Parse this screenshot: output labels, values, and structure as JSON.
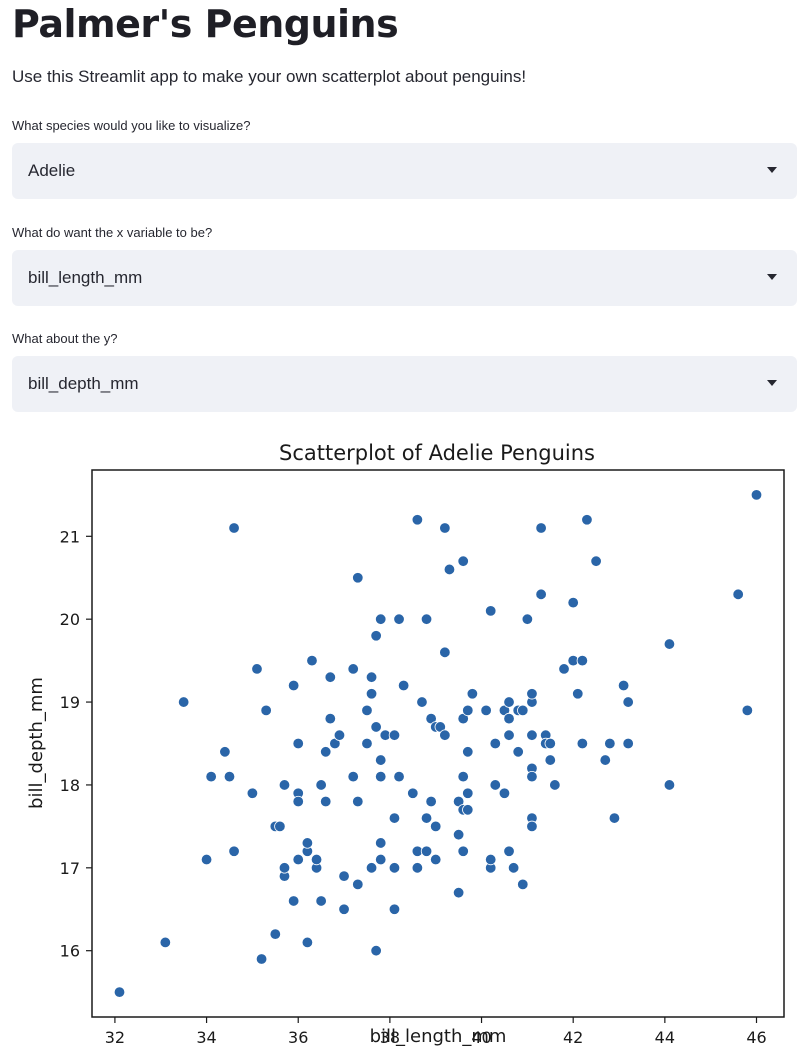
{
  "page": {
    "title": "Palmer's Penguins",
    "subtitle": "Use this Streamlit app to make your own scatterplot about penguins!"
  },
  "controls": [
    {
      "label": "What species would you like to visualize?",
      "value": "Adelie"
    },
    {
      "label": "What do want the x variable to be?",
      "value": "bill_length_mm"
    },
    {
      "label": "What about the y?",
      "value": "bill_depth_mm"
    }
  ],
  "icons": {
    "dropdown": "chevron-down-icon"
  },
  "colors": {
    "point": "#2a65a8",
    "select_bg": "#eff1f6"
  },
  "chart_data": {
    "type": "scatter",
    "title": "Scatterplot of Adelie Penguins",
    "xlabel": "bill_length_mm",
    "ylabel": "bill_depth_mm",
    "xlim": [
      31.5,
      46.6
    ],
    "ylim": [
      15.2,
      21.8
    ],
    "xticks": [
      32,
      34,
      36,
      38,
      40,
      42,
      44,
      46
    ],
    "yticks": [
      16,
      17,
      18,
      19,
      20,
      21
    ],
    "grid": false,
    "points": [
      [
        32.1,
        15.5
      ],
      [
        33.1,
        16.1
      ],
      [
        33.5,
        19.0
      ],
      [
        34.0,
        17.1
      ],
      [
        34.1,
        18.1
      ],
      [
        34.4,
        18.4
      ],
      [
        34.5,
        18.1
      ],
      [
        34.6,
        21.1
      ],
      [
        34.6,
        17.2
      ],
      [
        35.0,
        17.9
      ],
      [
        35.1,
        19.4
      ],
      [
        35.2,
        15.9
      ],
      [
        35.3,
        18.9
      ],
      [
        35.5,
        17.5
      ],
      [
        35.5,
        16.2
      ],
      [
        35.6,
        17.5
      ],
      [
        35.7,
        16.9
      ],
      [
        35.7,
        17.0
      ],
      [
        35.7,
        18.0
      ],
      [
        35.9,
        19.2
      ],
      [
        35.9,
        16.6
      ],
      [
        36.0,
        17.1
      ],
      [
        36.0,
        17.9
      ],
      [
        36.0,
        17.8
      ],
      [
        36.0,
        18.5
      ],
      [
        36.2,
        17.2
      ],
      [
        36.2,
        17.3
      ],
      [
        36.2,
        16.1
      ],
      [
        36.3,
        19.5
      ],
      [
        36.4,
        17.0
      ],
      [
        36.4,
        17.1
      ],
      [
        36.5,
        18.0
      ],
      [
        36.5,
        16.6
      ],
      [
        36.6,
        17.8
      ],
      [
        36.6,
        18.4
      ],
      [
        36.7,
        19.3
      ],
      [
        36.7,
        18.8
      ],
      [
        36.8,
        18.5
      ],
      [
        36.9,
        18.6
      ],
      [
        37.0,
        16.9
      ],
      [
        37.0,
        16.5
      ],
      [
        37.2,
        19.4
      ],
      [
        37.2,
        18.1
      ],
      [
        37.3,
        20.5
      ],
      [
        37.3,
        17.8
      ],
      [
        37.3,
        16.8
      ],
      [
        37.5,
        18.9
      ],
      [
        37.5,
        18.5
      ],
      [
        37.6,
        19.3
      ],
      [
        37.6,
        19.1
      ],
      [
        37.6,
        17.0
      ],
      [
        37.7,
        19.8
      ],
      [
        37.7,
        18.7
      ],
      [
        37.7,
        16.0
      ],
      [
        37.8,
        20.0
      ],
      [
        37.8,
        18.3
      ],
      [
        37.8,
        18.1
      ],
      [
        37.8,
        17.1
      ],
      [
        37.8,
        17.3
      ],
      [
        37.9,
        18.6
      ],
      [
        38.1,
        18.6
      ],
      [
        38.1,
        17.0
      ],
      [
        38.1,
        16.5
      ],
      [
        38.1,
        17.6
      ],
      [
        38.2,
        18.1
      ],
      [
        38.2,
        20.0
      ],
      [
        38.3,
        19.2
      ],
      [
        38.5,
        17.9
      ],
      [
        38.6,
        21.2
      ],
      [
        38.6,
        17.2
      ],
      [
        38.6,
        17.0
      ],
      [
        38.7,
        19.0
      ],
      [
        38.8,
        20.0
      ],
      [
        38.8,
        17.6
      ],
      [
        38.8,
        17.2
      ],
      [
        38.9,
        18.8
      ],
      [
        38.9,
        17.8
      ],
      [
        39.0,
        18.7
      ],
      [
        39.0,
        17.5
      ],
      [
        39.0,
        17.1
      ],
      [
        39.1,
        18.7
      ],
      [
        39.2,
        21.1
      ],
      [
        39.2,
        19.6
      ],
      [
        39.2,
        18.6
      ],
      [
        39.3,
        20.6
      ],
      [
        39.5,
        16.7
      ],
      [
        39.5,
        17.8
      ],
      [
        39.5,
        17.4
      ],
      [
        39.6,
        20.7
      ],
      [
        39.6,
        18.8
      ],
      [
        39.6,
        18.1
      ],
      [
        39.6,
        17.7
      ],
      [
        39.6,
        17.2
      ],
      [
        39.7,
        18.9
      ],
      [
        39.7,
        18.4
      ],
      [
        39.7,
        17.9
      ],
      [
        39.7,
        17.7
      ],
      [
        39.8,
        19.1
      ],
      [
        40.1,
        18.9
      ],
      [
        40.2,
        20.1
      ],
      [
        40.2,
        17.0
      ],
      [
        40.2,
        17.1
      ],
      [
        40.3,
        18.0
      ],
      [
        40.3,
        18.5
      ],
      [
        40.5,
        17.9
      ],
      [
        40.5,
        18.9
      ],
      [
        40.6,
        19.0
      ],
      [
        40.6,
        18.6
      ],
      [
        40.6,
        18.8
      ],
      [
        40.6,
        17.2
      ],
      [
        40.7,
        17.0
      ],
      [
        40.8,
        18.9
      ],
      [
        40.8,
        18.4
      ],
      [
        40.9,
        18.9
      ],
      [
        40.9,
        16.8
      ],
      [
        41.0,
        20.0
      ],
      [
        41.1,
        19.0
      ],
      [
        41.1,
        18.6
      ],
      [
        41.1,
        18.2
      ],
      [
        41.1,
        17.6
      ],
      [
        41.1,
        17.5
      ],
      [
        41.1,
        19.1
      ],
      [
        41.1,
        18.1
      ],
      [
        41.3,
        21.1
      ],
      [
        41.3,
        20.3
      ],
      [
        41.4,
        18.6
      ],
      [
        41.4,
        18.5
      ],
      [
        41.5,
        18.3
      ],
      [
        41.5,
        18.5
      ],
      [
        41.6,
        18.0
      ],
      [
        41.8,
        19.4
      ],
      [
        42.0,
        20.2
      ],
      [
        42.0,
        19.5
      ],
      [
        42.1,
        19.1
      ],
      [
        42.2,
        19.5
      ],
      [
        42.2,
        18.5
      ],
      [
        42.3,
        21.2
      ],
      [
        42.5,
        20.7
      ],
      [
        42.7,
        18.3
      ],
      [
        42.8,
        18.5
      ],
      [
        42.9,
        17.6
      ],
      [
        43.1,
        19.2
      ],
      [
        43.2,
        19.0
      ],
      [
        43.2,
        18.5
      ],
      [
        44.1,
        19.7
      ],
      [
        44.1,
        18.0
      ],
      [
        45.6,
        20.3
      ],
      [
        45.8,
        18.9
      ],
      [
        46.0,
        21.5
      ]
    ]
  }
}
